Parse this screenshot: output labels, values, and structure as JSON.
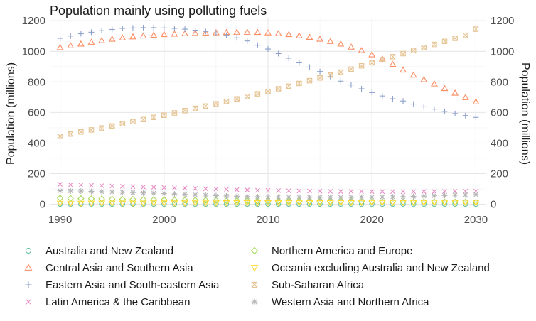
{
  "chart_data": {
    "type": "scatter",
    "title": "Population mainly using polluting fuels",
    "ylabel_left": "Population (millions)",
    "ylabel_right": "Population (millions)",
    "xlabel": "",
    "xlim": [
      1989,
      2031
    ],
    "ylim": [
      -30,
      1215
    ],
    "x_ticks": [
      1990,
      2000,
      2010,
      2020,
      2030
    ],
    "y_ticks": [
      0,
      200,
      400,
      600,
      800,
      1000,
      1200
    ],
    "grid": true,
    "legend_position": "bottom",
    "x": [
      1990,
      1991,
      1992,
      1993,
      1994,
      1995,
      1996,
      1997,
      1998,
      1999,
      2000,
      2001,
      2002,
      2003,
      2004,
      2005,
      2006,
      2007,
      2008,
      2009,
      2010,
      2011,
      2012,
      2013,
      2014,
      2015,
      2016,
      2017,
      2018,
      2019,
      2020,
      2021,
      2022,
      2023,
      2024,
      2025,
      2026,
      2027,
      2028,
      2029,
      2030
    ],
    "series": [
      {
        "name": "Australia and New Zealand",
        "color": "#66c2a5",
        "marker": "circle",
        "values": [
          1,
          1,
          1,
          1,
          1,
          1,
          1,
          1,
          1,
          1,
          1,
          1,
          1,
          1,
          1,
          1,
          1,
          1,
          1,
          1,
          1,
          1,
          1,
          1,
          1,
          1,
          1,
          1,
          1,
          1,
          1,
          1,
          1,
          1,
          1,
          1,
          1,
          1,
          1,
          1,
          1
        ]
      },
      {
        "name": "Central Asia and Southern Asia",
        "color": "#fc8d62",
        "marker": "triangle-up",
        "values": [
          1025,
          1037,
          1048,
          1060,
          1070,
          1080,
          1088,
          1095,
          1101,
          1106,
          1110,
          1113,
          1116,
          1118,
          1120,
          1122,
          1124,
          1125,
          1125,
          1124,
          1121,
          1116,
          1110,
          1102,
          1092,
          1080,
          1065,
          1048,
          1028,
          1005,
          978,
          950,
          915,
          878,
          845,
          815,
          787,
          757,
          727,
          698,
          670
        ]
      },
      {
        "name": "Eastern Asia and South-eastern Asia",
        "color": "#8da0cb",
        "marker": "plus",
        "values": [
          1085,
          1100,
          1115,
          1125,
          1135,
          1143,
          1150,
          1153,
          1155,
          1155,
          1153,
          1150,
          1145,
          1138,
          1130,
          1120,
          1105,
          1088,
          1068,
          1040,
          1015,
          985,
          955,
          925,
          897,
          868,
          835,
          805,
          780,
          755,
          730,
          708,
          690,
          675,
          655,
          637,
          622,
          607,
          593,
          580,
          568
        ]
      },
      {
        "name": "Latin America & the Caribbean",
        "color": "#e78ac3",
        "marker": "cross",
        "values": [
          130,
          127,
          125,
          123,
          121,
          119,
          117,
          115,
          113,
          111,
          109,
          107,
          105,
          103,
          101,
          99,
          97,
          95,
          93,
          91,
          90,
          89,
          88,
          87,
          86,
          85,
          84,
          83,
          83,
          82,
          82,
          82,
          82,
          82,
          82,
          83,
          83,
          84,
          84,
          85,
          85
        ]
      },
      {
        "name": "Northern America and Europe",
        "color": "#a6d854",
        "marker": "diamond",
        "values": [
          40,
          38,
          37,
          36,
          35,
          34,
          33,
          32,
          31,
          30,
          29,
          28,
          27,
          27,
          26,
          25,
          24,
          24,
          23,
          22,
          22,
          21,
          21,
          20,
          20,
          19,
          19,
          18,
          18,
          17,
          17,
          16,
          16,
          16,
          15,
          15,
          15,
          14,
          14,
          14,
          13
        ]
      },
      {
        "name": "Oceania excluding Australia and New Zealand",
        "color": "#ffd92f",
        "marker": "triangle-down",
        "values": [
          6,
          6,
          6,
          7,
          7,
          7,
          7,
          7,
          7,
          8,
          8,
          8,
          8,
          8,
          8,
          8,
          9,
          9,
          9,
          9,
          9,
          9,
          9,
          10,
          10,
          10,
          10,
          10,
          10,
          11,
          11,
          11,
          11,
          11,
          11,
          11,
          12,
          12,
          12,
          12,
          12
        ]
      },
      {
        "name": "Sub-Saharan Africa",
        "color": "#e5c494",
        "marker": "square-x",
        "values": [
          445,
          459,
          473,
          486,
          499,
          512,
          526,
          540,
          554,
          568,
          582,
          597,
          612,
          627,
          642,
          657,
          673,
          689,
          705,
          722,
          738,
          755,
          772,
          790,
          808,
          826,
          845,
          864,
          884,
          905,
          925,
          945,
          965,
          985,
          1005,
          1025,
          1045,
          1065,
          1085,
          1105,
          1145
        ]
      },
      {
        "name": "Western Asia and Northern Africa",
        "color": "#b3b3b3",
        "marker": "asterisk",
        "values": [
          88,
          87,
          86,
          84,
          82,
          80,
          78,
          76,
          74,
          72,
          70,
          67,
          64,
          62,
          59,
          56,
          54,
          52,
          50,
          49,
          48,
          47,
          46,
          46,
          45,
          45,
          45,
          45,
          45,
          46,
          46,
          47,
          48,
          49,
          51,
          53,
          55,
          57,
          59,
          61,
          63
        ]
      }
    ]
  }
}
